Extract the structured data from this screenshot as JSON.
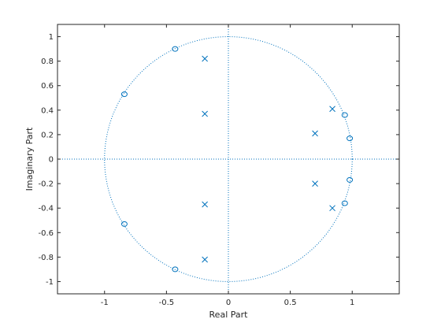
{
  "chart_data": {
    "type": "scatter",
    "plot_kind": "pole-zero",
    "title": "",
    "xlabel": "Real Part",
    "ylabel": "Imaginary Part",
    "xlim": [
      -1.38,
      1.38
    ],
    "ylim": [
      -1.1,
      1.1
    ],
    "xticks": [
      -1,
      -0.5,
      0,
      0.5,
      1
    ],
    "xtick_labels": [
      "-1",
      "-0.5",
      "0",
      "0.5",
      "1"
    ],
    "yticks": [
      -1,
      -0.8,
      -0.6,
      -0.4,
      -0.2,
      0,
      0.2,
      0.4,
      0.6,
      0.8,
      1
    ],
    "ytick_labels": [
      "-1",
      "-0.8",
      "-0.6",
      "-0.4",
      "-0.2",
      "0",
      "0.2",
      "0.4",
      "0.6",
      "0.8",
      "1"
    ],
    "grid": false,
    "unit_circle": true,
    "axis_lines": true,
    "marker_color": "#0072bd",
    "zeros": [
      {
        "x": -0.43,
        "y": 0.9
      },
      {
        "x": -0.43,
        "y": -0.9
      },
      {
        "x": -0.84,
        "y": 0.53
      },
      {
        "x": -0.84,
        "y": -0.53
      },
      {
        "x": 0.94,
        "y": 0.36
      },
      {
        "x": 0.94,
        "y": -0.36
      },
      {
        "x": 0.98,
        "y": 0.17
      },
      {
        "x": 0.98,
        "y": -0.17
      }
    ],
    "poles": [
      {
        "x": -0.19,
        "y": 0.82
      },
      {
        "x": -0.19,
        "y": -0.82
      },
      {
        "x": -0.19,
        "y": 0.37
      },
      {
        "x": -0.19,
        "y": -0.37
      },
      {
        "x": 0.7,
        "y": 0.21
      },
      {
        "x": 0.7,
        "y": -0.2
      },
      {
        "x": 0.84,
        "y": 0.41
      },
      {
        "x": 0.84,
        "y": -0.4
      }
    ]
  }
}
